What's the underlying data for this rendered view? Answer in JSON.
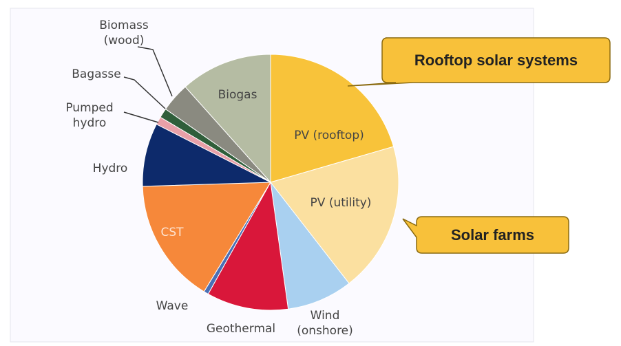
{
  "chart_data": {
    "type": "pie",
    "categories": [
      "PV (rooftop)",
      "PV (utility)",
      "Wind\n(onshore)",
      "Geothermal",
      "Wave",
      "CST",
      "Hydro",
      "Pumped\nhydro",
      "Bagasse",
      "Biomass\n(wood)",
      "Biogas"
    ],
    "values": [
      20.5,
      19,
      8.3,
      10.3,
      0.6,
      15.8,
      8,
      1,
      1.2,
      3.7,
      11.6
    ],
    "colors": [
      "#f8c33a",
      "#fbe0a0",
      "#a9d0f0",
      "#d9173a",
      "#4a6fb5",
      "#f6883a",
      "#0d2a6b",
      "#e8a0a8",
      "#2f5e3a",
      "#8a8a80",
      "#b5bca3"
    ],
    "annotations": [
      "Rooftop solar systems",
      "Solar farms"
    ]
  }
}
